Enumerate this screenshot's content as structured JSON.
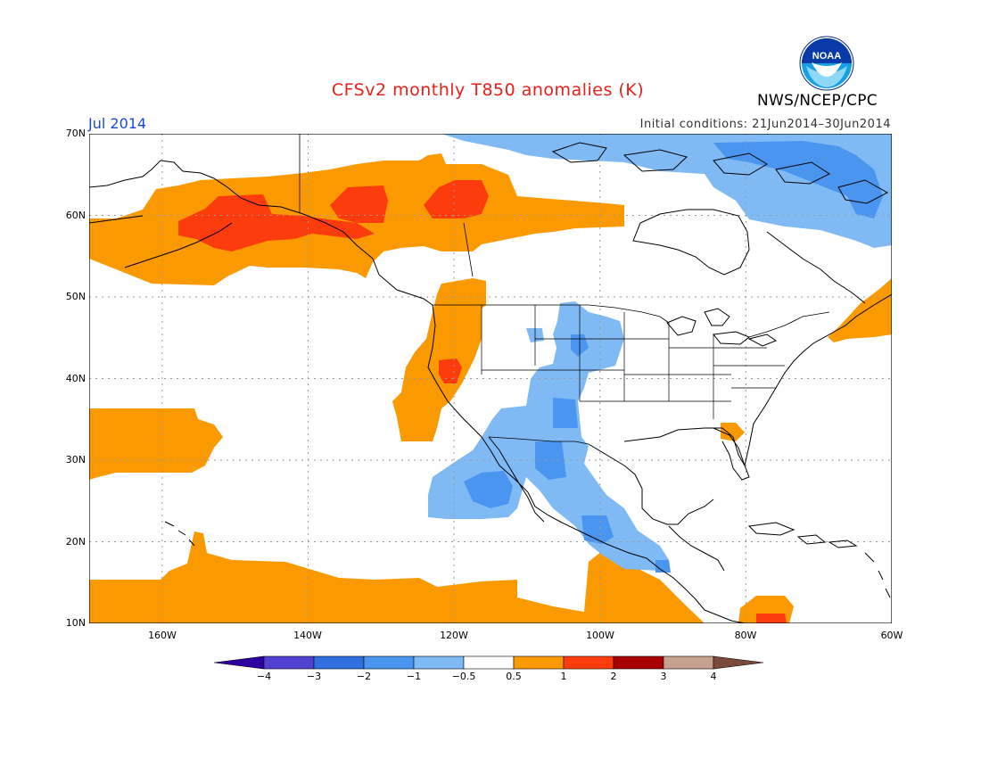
{
  "title": "CFSv2 monthly T850 anomalies (K)",
  "agency": "NWS/NCEP/CPC",
  "logo_text": "NOAA",
  "valid_month": "Jul 2014",
  "initial_conditions": "Initial conditions: 21Jun2014–30Jun2014",
  "map": {
    "lat_labels": [
      "70N",
      "60N",
      "50N",
      "40N",
      "30N",
      "20N",
      "10N"
    ],
    "lon_labels": [
      "160W",
      "140W",
      "120W",
      "100W",
      "80W",
      "60W"
    ],
    "lat_range": [
      10,
      70
    ],
    "lon_range": [
      -170,
      -60
    ],
    "grid": "dotted",
    "ocean_color": "#ffffff"
  },
  "colorbar": {
    "ticks": [
      "−4",
      "−3",
      "−2",
      "−1",
      "−0.5",
      "0.5",
      "1",
      "2",
      "3",
      "4"
    ],
    "colors": [
      "#2d00a0",
      "#5041d0",
      "#2f6fe0",
      "#4a95ef",
      "#7fbaf5",
      "#ffffff",
      "#fb9a00",
      "#fc3c0c",
      "#a80000",
      "#c8a090",
      "#7a4a3a"
    ],
    "low_arrow_color": "#2d00a0",
    "high_arrow_color": "#7a4a3a"
  },
  "anomaly_colors": {
    "warm_0_5_to_1": "#fb9a00",
    "warm_1_to_2": "#fc3c0c",
    "cool_minus1_to_minus0_5": "#7fbaf5",
    "cool_minus2_to_minus1": "#4a95ef"
  }
}
